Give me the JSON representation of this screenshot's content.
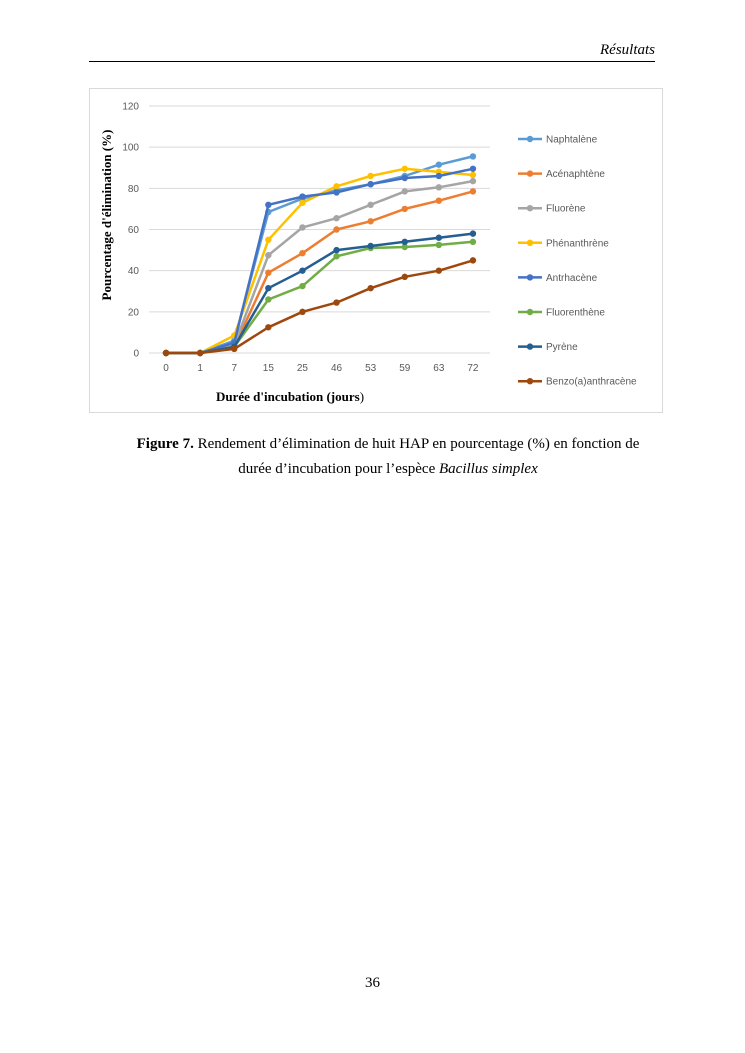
{
  "header": {
    "section": "Résultats"
  },
  "figure": {
    "label": "Figure 7.",
    "caption_line1": "Rendement d’élimination de huit HAP en pourcentage (%) en fonction de",
    "caption_line2_prefix": "durée d’incubation pour l’espèce ",
    "caption_species": "Bacillus simplex"
  },
  "page_number": "36",
  "chart_data": {
    "type": "line",
    "xlabel_main": "Durée d'incubation (jours",
    "xlabel_paren": ")",
    "ylabel": "Pourcentage d'élimination (%)",
    "categories": [
      "0",
      "1",
      "7",
      "15",
      "25",
      "46",
      "53",
      "59",
      "63",
      "72"
    ],
    "ylim": [
      0,
      120
    ],
    "yticks": [
      0,
      20,
      40,
      60,
      80,
      100,
      120
    ],
    "grid": true,
    "legend_position": "right",
    "series": [
      {
        "name": "Naphtalène",
        "color": "#5b9bd5",
        "values": [
          0,
          0,
          6,
          68.5,
          75,
          79,
          82,
          86,
          91.5,
          95.5
        ]
      },
      {
        "name": "Acénaphtène",
        "color": "#ed7d31",
        "values": [
          0,
          0,
          3,
          39,
          48.5,
          60,
          64,
          70,
          74,
          78.5
        ]
      },
      {
        "name": "Fluorène",
        "color": "#a5a5a5",
        "values": [
          0,
          0,
          4,
          47.5,
          61,
          65.5,
          72,
          78.5,
          80.5,
          83.5
        ]
      },
      {
        "name": "Phénanthrène",
        "color": "#ffc000",
        "values": [
          0,
          0,
          8.5,
          55,
          73,
          81,
          86,
          89.5,
          88,
          86.5
        ]
      },
      {
        "name": "Antrhacène",
        "color": "#4472c4",
        "values": [
          0,
          0,
          5,
          72,
          76,
          78,
          82,
          85,
          86,
          89.5
        ]
      },
      {
        "name": "Fluorenthène",
        "color": "#70ad47",
        "values": [
          0,
          0,
          3,
          26,
          32.5,
          47,
          51,
          51.5,
          52.5,
          54
        ]
      },
      {
        "name": "Pyrène",
        "color": "#255e91",
        "values": [
          0,
          0,
          3,
          31.5,
          40,
          50,
          52,
          54,
          56,
          58
        ]
      },
      {
        "name": "Benzo(a)anthracène",
        "color": "#9e480e",
        "values": [
          0,
          0,
          2,
          12.5,
          20,
          24.5,
          31.5,
          37,
          40,
          45
        ]
      }
    ]
  }
}
